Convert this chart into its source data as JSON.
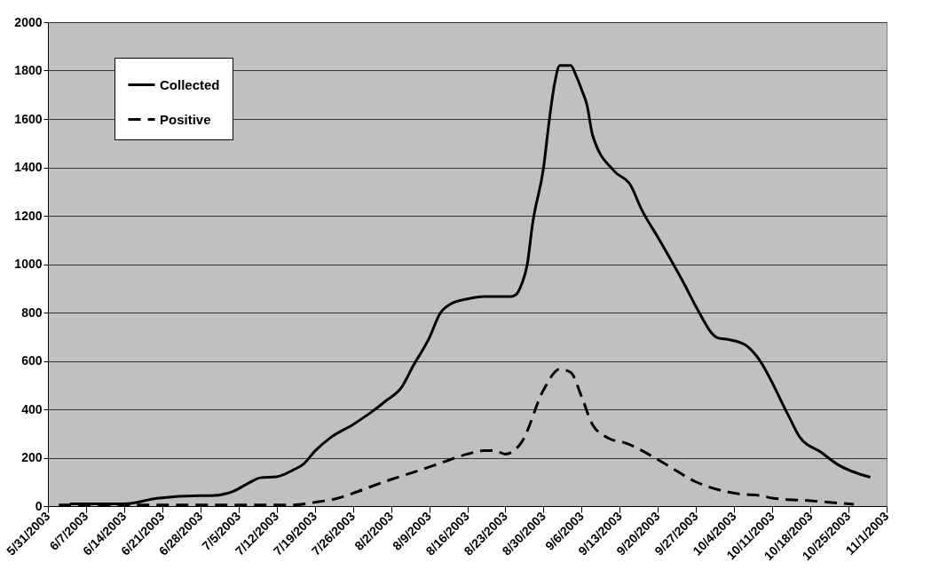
{
  "chart_data": {
    "type": "line",
    "xlim": [
      "2003-05-31",
      "2003-11-01"
    ],
    "xticks": [
      {
        "value": "2003-05-31",
        "label": "5/31/2003"
      },
      {
        "value": "2003-06-07",
        "label": "6/7/2003"
      },
      {
        "value": "2003-06-14",
        "label": "6/14/2003"
      },
      {
        "value": "2003-06-21",
        "label": "6/21/2003"
      },
      {
        "value": "2003-06-28",
        "label": "6/28/2003"
      },
      {
        "value": "2003-07-05",
        "label": "7/5/2003"
      },
      {
        "value": "2003-07-12",
        "label": "7/12/2003"
      },
      {
        "value": "2003-07-19",
        "label": "7/19/2003"
      },
      {
        "value": "2003-07-26",
        "label": "7/26/2003"
      },
      {
        "value": "2003-08-02",
        "label": "8/2/2003"
      },
      {
        "value": "2003-08-09",
        "label": "8/9/2003"
      },
      {
        "value": "2003-08-16",
        "label": "8/16/2003"
      },
      {
        "value": "2003-08-23",
        "label": "8/23/2003"
      },
      {
        "value": "2003-08-30",
        "label": "8/30/2003"
      },
      {
        "value": "2003-09-06",
        "label": "9/6/2003"
      },
      {
        "value": "2003-09-13",
        "label": "9/13/2003"
      },
      {
        "value": "2003-09-20",
        "label": "9/20/2003"
      },
      {
        "value": "2003-09-27",
        "label": "9/27/2003"
      },
      {
        "value": "2003-10-04",
        "label": "10/4/2003"
      },
      {
        "value": "2003-10-11",
        "label": "10/11/2003"
      },
      {
        "value": "2003-10-18",
        "label": "10/18/2003"
      },
      {
        "value": "2003-10-25",
        "label": "10/25/2003"
      },
      {
        "value": "2003-11-01",
        "label": "11/1/2003"
      }
    ],
    "ylim": [
      0,
      2000
    ],
    "yticks": [
      0,
      200,
      400,
      600,
      800,
      1000,
      1200,
      1400,
      1600,
      1800,
      2000
    ],
    "grid": "y",
    "legend": "top left",
    "marker": "none",
    "series": [
      {
        "name": "Collected",
        "color": "#000000",
        "line_style": "solid",
        "x": [
          "2003-06-04",
          "2003-06-14",
          "2003-06-20",
          "2003-06-28",
          "2003-06-30",
          "2003-07-04",
          "2003-07-07",
          "2003-07-09",
          "2003-07-12",
          "2003-07-15",
          "2003-07-17",
          "2003-07-19",
          "2003-07-22",
          "2003-07-26",
          "2003-07-29",
          "2003-08-01",
          "2003-08-04",
          "2003-08-06",
          "2003-08-09",
          "2003-08-11",
          "2003-08-13",
          "2003-08-16",
          "2003-08-19",
          "2003-08-24",
          "2003-08-25",
          "2003-08-26",
          "2003-08-27",
          "2003-08-28",
          "2003-08-30",
          "2003-08-31",
          "2003-09-01",
          "2003-09-02",
          "2003-09-04",
          "2003-09-05",
          "2003-09-06",
          "2003-09-07",
          "2003-09-08",
          "2003-09-12",
          "2003-09-15",
          "2003-09-17",
          "2003-09-20",
          "2003-09-25",
          "2003-09-27",
          "2003-10-01",
          "2003-10-03",
          "2003-10-06",
          "2003-10-08",
          "2003-10-14",
          "2003-10-16",
          "2003-10-20",
          "2003-10-23",
          "2003-10-29"
        ],
        "values": [
          9,
          9,
          32,
          43,
          43,
          61,
          97,
          117,
          121,
          149,
          175,
          227,
          285,
          337,
          382,
          434,
          493,
          577,
          694,
          796,
          836,
          856,
          866,
          866,
          875,
          918,
          997,
          1169,
          1398,
          1584,
          1742,
          1821,
          1821,
          1778,
          1721,
          1656,
          1534,
          1384,
          1326,
          1226,
          1111,
          911,
          824,
          695,
          688,
          667,
          624,
          373,
          287,
          222,
          172,
          119
        ]
      },
      {
        "name": "Positive",
        "color": "#000000",
        "line_style": "dashed",
        "x": [
          "2003-06-02",
          "2003-07-15",
          "2003-07-20",
          "2003-07-22",
          "2003-07-27",
          "2003-07-29",
          "2003-08-02",
          "2003-08-06",
          "2003-08-10",
          "2003-08-16",
          "2003-08-19",
          "2003-08-21",
          "2003-08-23",
          "2003-08-26",
          "2003-08-30",
          "2003-09-02",
          "2003-09-04",
          "2003-09-06",
          "2003-09-08",
          "2003-09-11",
          "2003-09-14",
          "2003-09-21",
          "2003-09-27",
          "2003-10-05",
          "2003-10-09",
          "2003-10-11",
          "2003-10-18",
          "2003-10-26"
        ],
        "values": [
          5,
          5,
          19,
          26,
          61,
          78,
          110,
          139,
          169,
          215,
          229,
          229,
          215,
          265,
          480,
          566,
          552,
          452,
          337,
          280,
          261,
          179,
          100,
          50,
          43,
          33,
          22,
          7
        ]
      }
    ]
  }
}
